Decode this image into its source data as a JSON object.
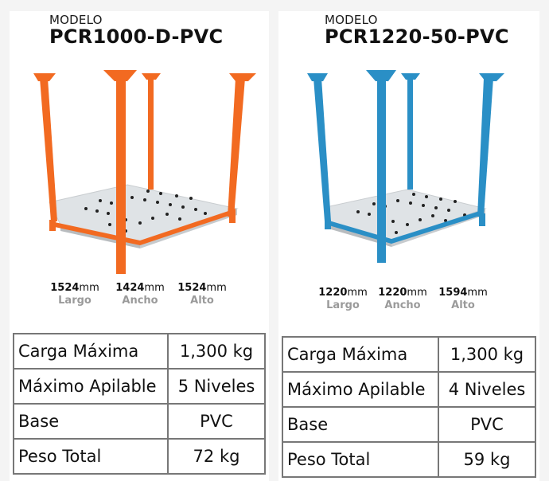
{
  "products": [
    {
      "modelo_label": "MODELO",
      "model": "PCR1000-D-PVC",
      "color": "#f26a21",
      "dimensions": [
        {
          "value": "1524",
          "unit": "mm",
          "label": "Largo"
        },
        {
          "value": "1424",
          "unit": "mm",
          "label": "Ancho"
        },
        {
          "value": "1524",
          "unit": "mm",
          "label": "Alto"
        }
      ],
      "specs": [
        {
          "key": "Carga Máxima",
          "value": "1,300 kg"
        },
        {
          "key": "Máximo Apilable",
          "value": "5 Niveles"
        },
        {
          "key": "Base",
          "value": "PVC"
        },
        {
          "key": "Peso Total",
          "value": "72 kg"
        }
      ]
    },
    {
      "modelo_label": "MODELO",
      "model": "PCR1220-50-PVC",
      "color": "#2a8fc6",
      "dimensions": [
        {
          "value": "1220",
          "unit": "mm",
          "label": "Largo"
        },
        {
          "value": "1220",
          "unit": "mm",
          "label": "Ancho"
        },
        {
          "value": "1594",
          "unit": "mm",
          "label": "Alto"
        }
      ],
      "specs": [
        {
          "key": "Carga Máxima",
          "value": "1,300 kg"
        },
        {
          "key": "Máximo Apilable",
          "value": "4 Niveles"
        },
        {
          "key": "Base",
          "value": "PVC"
        },
        {
          "key": "Peso Total",
          "value": "59 kg"
        }
      ]
    }
  ]
}
